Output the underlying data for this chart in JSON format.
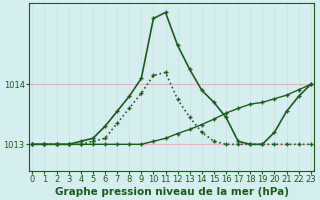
{
  "title": "Graphe pression niveau de la mer (hPa)",
  "bg_color": "#d6eef0",
  "grid_color_h": "#e8b4b8",
  "grid_color_v": "#c8dfe0",
  "line_color": "#1a5c1a",
  "x_labels": [
    "0",
    "1",
    "2",
    "3",
    "4",
    "5",
    "6",
    "7",
    "8",
    "9",
    "10",
    "11",
    "12",
    "13",
    "14",
    "15",
    "16",
    "17",
    "18",
    "19",
    "20",
    "21",
    "22",
    "23"
  ],
  "y_ticks": [
    1013,
    1014
  ],
  "ylim": [
    1012.55,
    1015.35
  ],
  "xlim": [
    -0.3,
    23.3
  ],
  "series": [
    {
      "x": [
        0,
        1,
        2,
        3,
        4,
        5,
        6,
        7,
        8,
        9,
        10,
        11,
        12,
        13,
        14,
        15,
        16,
        17,
        18,
        19,
        20,
        21,
        22,
        23
      ],
      "y": [
        1013.0,
        1013.0,
        1013.0,
        1013.0,
        1013.05,
        1013.1,
        1013.3,
        1013.55,
        1013.8,
        1014.1,
        1015.1,
        1015.2,
        1014.65,
        1014.25,
        1013.9,
        1013.7,
        1013.45,
        1013.05,
        1013.0,
        1013.0,
        1013.2,
        1013.55,
        1013.8,
        1014.0
      ],
      "style": "solid",
      "lw": 1.2,
      "marker": "+"
    },
    {
      "x": [
        0,
        1,
        2,
        3,
        4,
        5,
        6,
        7,
        8,
        9,
        10,
        11,
        12,
        13,
        14,
        15,
        16,
        17,
        18,
        19,
        20,
        21,
        22,
        23
      ],
      "y": [
        1013.0,
        1013.0,
        1013.0,
        1013.0,
        1013.0,
        1013.0,
        1013.0,
        1013.0,
        1013.0,
        1013.0,
        1013.05,
        1013.1,
        1013.18,
        1013.25,
        1013.33,
        1013.42,
        1013.52,
        1013.6,
        1013.67,
        1013.7,
        1013.76,
        1013.82,
        1013.91,
        1014.0
      ],
      "style": "solid",
      "lw": 1.0,
      "marker": "+"
    },
    {
      "x": [
        0,
        1,
        2,
        3,
        4,
        5,
        6,
        7,
        8,
        9,
        10,
        11,
        12,
        13,
        14,
        15,
        16,
        17,
        18,
        19,
        20,
        21,
        22,
        23
      ],
      "y": [
        1013.0,
        1013.0,
        1013.0,
        1013.0,
        1013.0,
        1013.05,
        1013.1,
        1013.35,
        1013.6,
        1013.85,
        1014.15,
        1014.2,
        1013.75,
        1013.45,
        1013.2,
        1013.05,
        1013.0,
        1013.0,
        1013.0,
        1013.0,
        1013.0,
        1013.0,
        1013.0,
        1013.0
      ],
      "style": "dotted",
      "lw": 1.2,
      "marker": "+"
    }
  ],
  "title_fontsize": 7.5,
  "tick_fontsize": 6.0
}
